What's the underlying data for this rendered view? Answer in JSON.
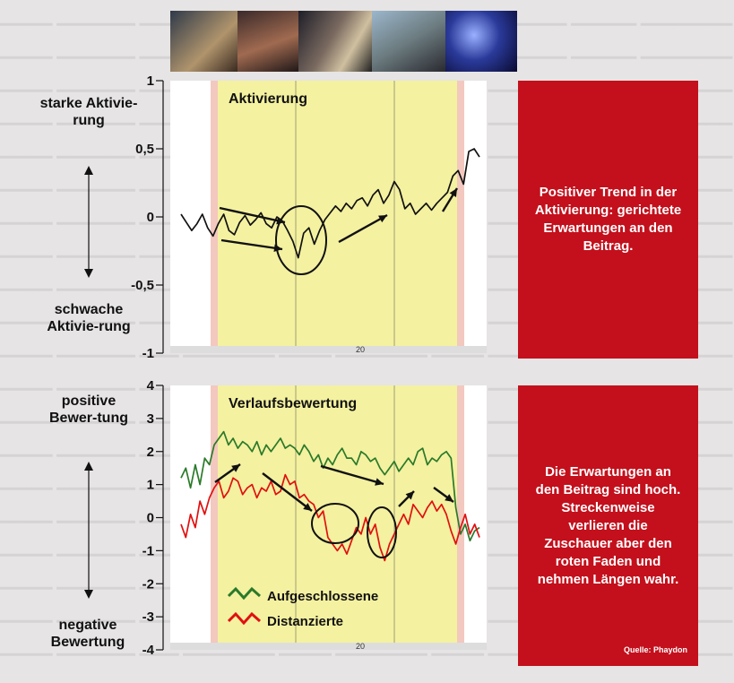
{
  "chart_data": [
    {
      "type": "line",
      "title": "Aktivierung",
      "ylim": [
        -1,
        1
      ],
      "yticks": [
        "-1",
        "-0,5",
        "0",
        "0,5",
        "1"
      ],
      "xtick": "20",
      "label_top": "starke Aktivie-rung",
      "label_bottom": "schwache Aktivie-rung",
      "series": [
        {
          "color": "#111111",
          "values": [
            0.02,
            -0.04,
            -0.1,
            -0.05,
            0.02,
            -0.08,
            -0.14,
            -0.05,
            0.02,
            -0.1,
            -0.13,
            -0.04,
            0.01,
            -0.06,
            -0.02,
            0.03,
            -0.05,
            -0.08,
            0.0,
            -0.03,
            -0.1,
            -0.18,
            -0.3,
            -0.12,
            -0.08,
            -0.2,
            -0.1,
            -0.02,
            0.03,
            0.08,
            0.04,
            0.1,
            0.06,
            0.12,
            0.14,
            0.08,
            0.16,
            0.2,
            0.1,
            0.16,
            0.26,
            0.2,
            0.06,
            0.1,
            0.02,
            0.06,
            0.1,
            0.05,
            0.1,
            0.14,
            0.18,
            0.3,
            0.34,
            0.24,
            0.48,
            0.5,
            0.44
          ]
        }
      ]
    },
    {
      "type": "line",
      "title": "Verlaufsbewertung",
      "ylim": [
        -4,
        4
      ],
      "yticks": [
        "-4",
        "-3",
        "-2",
        "-1",
        "0",
        "1",
        "2",
        "3",
        "4"
      ],
      "xtick": "20",
      "label_top": "positive Bewer-tung",
      "label_bottom": "negative Bewertung",
      "series": [
        {
          "name": "Aufgeschlossene",
          "color": "#2a7a2a",
          "values": [
            1.2,
            1.5,
            0.9,
            1.6,
            1.0,
            1.8,
            1.6,
            2.2,
            2.4,
            2.6,
            2.2,
            2.4,
            2.1,
            2.3,
            2.2,
            2.0,
            2.3,
            1.9,
            2.2,
            2.0,
            2.2,
            2.4,
            2.1,
            2.2,
            2.1,
            1.9,
            2.2,
            2.0,
            1.7,
            1.9,
            1.5,
            1.8,
            1.6,
            1.9,
            2.1,
            1.8,
            1.8,
            1.6,
            2.0,
            1.9,
            1.7,
            1.8,
            1.5,
            1.3,
            1.5,
            1.7,
            1.4,
            1.6,
            1.8,
            1.6,
            2.0,
            2.1,
            1.6,
            1.8,
            1.7,
            1.9,
            2.0,
            1.8,
            0.3,
            -0.5,
            -0.2,
            -0.7,
            -0.4,
            -0.3
          ]
        },
        {
          "name": "Distanzierte",
          "color": "#e01010",
          "values": [
            -0.2,
            -0.6,
            0.1,
            -0.3,
            0.5,
            0.1,
            0.6,
            0.9,
            1.1,
            0.6,
            0.8,
            1.2,
            1.1,
            0.7,
            0.9,
            1.0,
            0.6,
            0.9,
            0.8,
            1.1,
            0.7,
            0.8,
            1.3,
            1.0,
            1.1,
            0.6,
            0.7,
            0.5,
            0.4,
            0.0,
            0.2,
            -0.6,
            -0.8,
            -1.0,
            -0.8,
            -1.1,
            -0.7,
            -0.3,
            -0.5,
            0.0,
            -0.5,
            -0.2,
            -0.9,
            -1.3,
            -0.8,
            -0.5,
            -0.2,
            0.1,
            -0.2,
            0.4,
            0.2,
            0.0,
            0.3,
            0.5,
            0.2,
            0.4,
            0.1,
            -0.4,
            -0.8,
            -0.3,
            0.1,
            -0.5,
            -0.2,
            -0.6
          ]
        }
      ]
    }
  ],
  "boxes": {
    "box1": "Positiver Trend in der Aktivierung: gerichtete Erwartungen an den Beitrag.",
    "box2": "Die Erwartungen an den Beitrag sind hoch. Streckenweise verlieren die Zuschauer aber den roten Faden und nehmen Längen wahr.",
    "source": "Quelle: Phaydon"
  },
  "colors": {
    "box_red": "#c3101c",
    "band_yellow": "#f4f1a0",
    "band_pink": "#f3c8bf"
  }
}
